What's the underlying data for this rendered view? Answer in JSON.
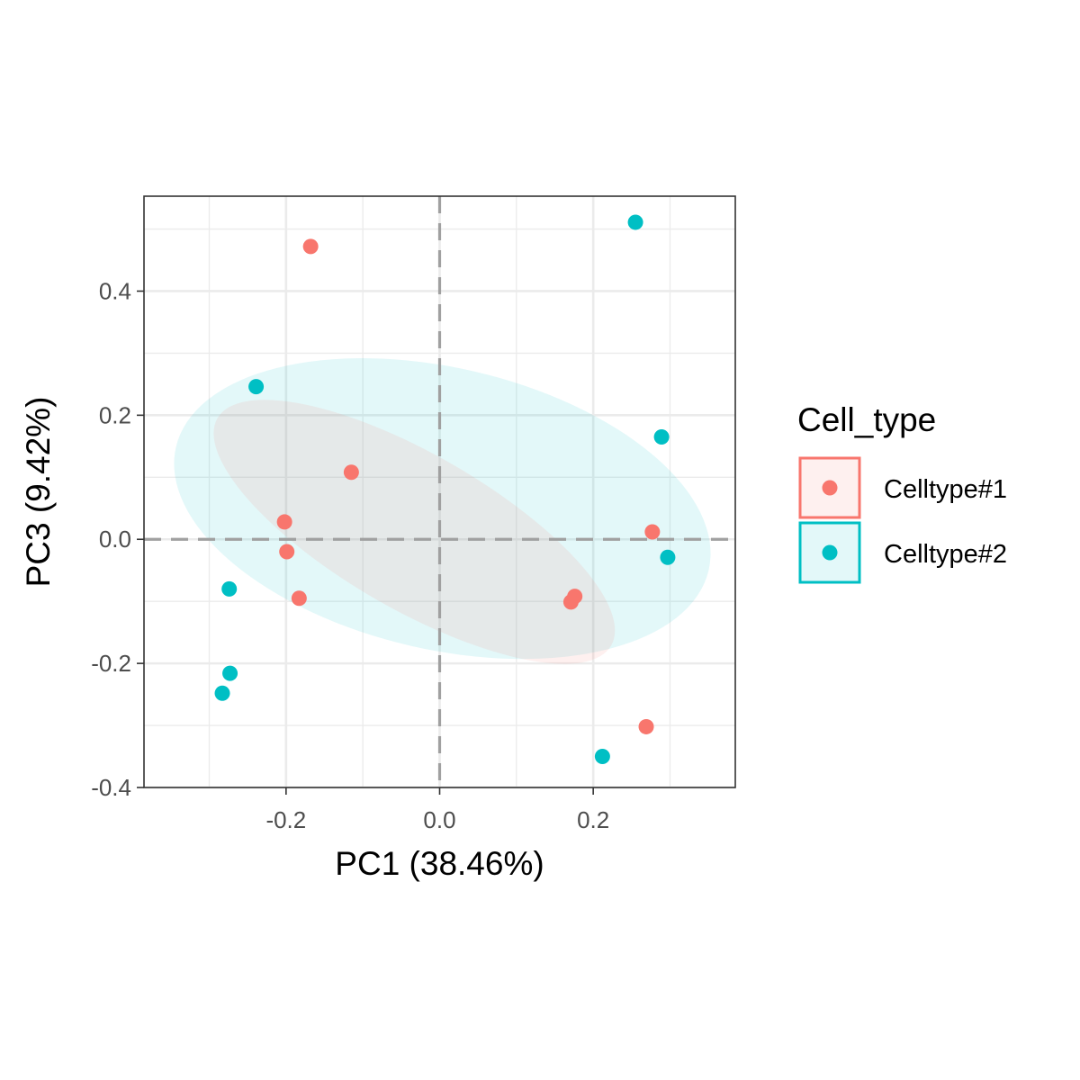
{
  "chart_data": {
    "type": "scatter",
    "xlabel": "PC1 (38.46%)",
    "ylabel": "PC3 (9.42%)",
    "xlim": [
      -0.385,
      0.385
    ],
    "ylim": [
      -0.4,
      0.553
    ],
    "x_ticks": [
      -0.2,
      0.0,
      0.2
    ],
    "x_tick_labels": [
      "-0.2",
      "0.0",
      "0.2"
    ],
    "y_ticks": [
      -0.4,
      -0.2,
      0.0,
      0.2,
      0.4
    ],
    "y_tick_labels": [
      "-0.4",
      "-0.2",
      "0.0",
      "0.2",
      "0.4"
    ],
    "grid": true,
    "reference_lines": [
      {
        "axis": "x",
        "value": 0,
        "style": "dashed"
      },
      {
        "axis": "y",
        "value": 0,
        "style": "dashed"
      }
    ],
    "legend": {
      "title": "Cell_type",
      "placement": "right",
      "entries": [
        "Celltype#1",
        "Celltype#2"
      ]
    },
    "series": [
      {
        "name": "Celltype#1",
        "color": "#F8766D",
        "points": [
          {
            "x": -0.168,
            "y": 0.472
          },
          {
            "x": -0.115,
            "y": 0.108
          },
          {
            "x": -0.202,
            "y": 0.028
          },
          {
            "x": -0.199,
            "y": -0.02
          },
          {
            "x": -0.183,
            "y": -0.095
          },
          {
            "x": 0.176,
            "y": -0.092
          },
          {
            "x": 0.171,
            "y": -0.101
          },
          {
            "x": 0.277,
            "y": 0.012
          },
          {
            "x": 0.269,
            "y": -0.302
          }
        ]
      },
      {
        "name": "Celltype#2",
        "color": "#00BFC4",
        "points": [
          {
            "x": 0.255,
            "y": 0.511
          },
          {
            "x": -0.239,
            "y": 0.246
          },
          {
            "x": 0.289,
            "y": 0.165
          },
          {
            "x": 0.297,
            "y": -0.029
          },
          {
            "x": -0.274,
            "y": -0.08
          },
          {
            "x": -0.273,
            "y": -0.216
          },
          {
            "x": -0.283,
            "y": -0.248
          },
          {
            "x": 0.212,
            "y": -0.35
          }
        ]
      }
    ],
    "ellipses": [
      {
        "series": "Celltype#2",
        "color": "#00BFC4",
        "center": [
          0.0035,
          0.0495
        ],
        "rx": 0.356,
        "ry": 0.227,
        "angle_deg": -13
      },
      {
        "series": "Celltype#1",
        "color": "#F8766D",
        "center": [
          -0.033,
          0.012
        ],
        "rx": 0.296,
        "ry": 0.125,
        "angle_deg": -30
      }
    ]
  }
}
